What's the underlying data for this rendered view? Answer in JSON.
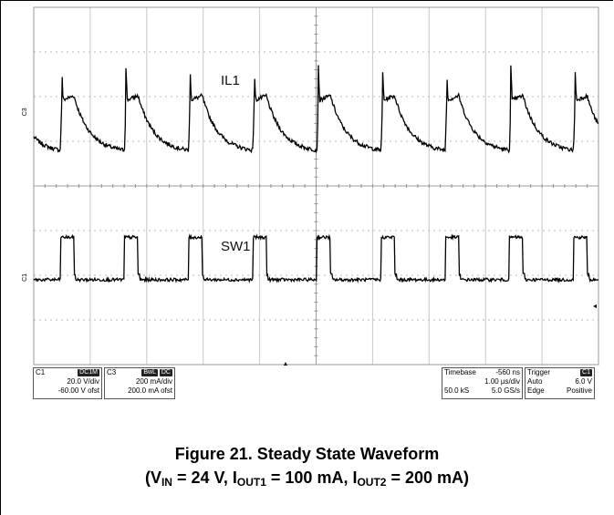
{
  "chart_data": {
    "type": "line",
    "grid": true,
    "divisions": {
      "x": 10,
      "y": 8
    },
    "series": [
      {
        "name": "IL1",
        "channel_marker": "C3",
        "color": "#000000",
        "description_values": {
          "period_div": 1.136,
          "first_rise_div": 0.47,
          "duty_div": 0.24,
          "low_div": 4.75,
          "plateau_div": 5.9,
          "peak_div": 6.7
        }
      },
      {
        "name": "SW1",
        "channel_marker": "C1",
        "color": "#000000",
        "description_values": {
          "period_div": 1.136,
          "first_rise_div": 0.47,
          "duty_div": 0.24,
          "low_div": 1.9,
          "high_div": 2.85
        }
      }
    ],
    "channel_settings": [
      {
        "channel": "C1",
        "coupling": "DC1M",
        "scale": "20.0 V/div",
        "offset": "-60.00 V ofst"
      },
      {
        "channel": "C3",
        "coupling_a": "BwL",
        "coupling_b": "DC",
        "scale": "200 mA/div",
        "offset": "200.0 mA ofst"
      }
    ],
    "timebase": {
      "label": "Timebase",
      "delay": "-560 ns",
      "scale": "1.00 µs/div",
      "samples": "50.0 kS",
      "rate": "5.0 GS/s"
    },
    "trigger": {
      "label": "Trigger",
      "source": "C1",
      "mode": "Auto",
      "level": "6.0 V",
      "type": "Edge",
      "slope": "Positive"
    }
  },
  "caption": {
    "line1": "Figure 21. Steady State Waveform",
    "vin_sub": "IN",
    "vin_value": " = 24 V, ",
    "iout1_sub": "OUT1",
    "iout1_value": " = 100 mA, ",
    "iout2_sub": "OUT2",
    "iout2_value": " = 200 mA)"
  }
}
